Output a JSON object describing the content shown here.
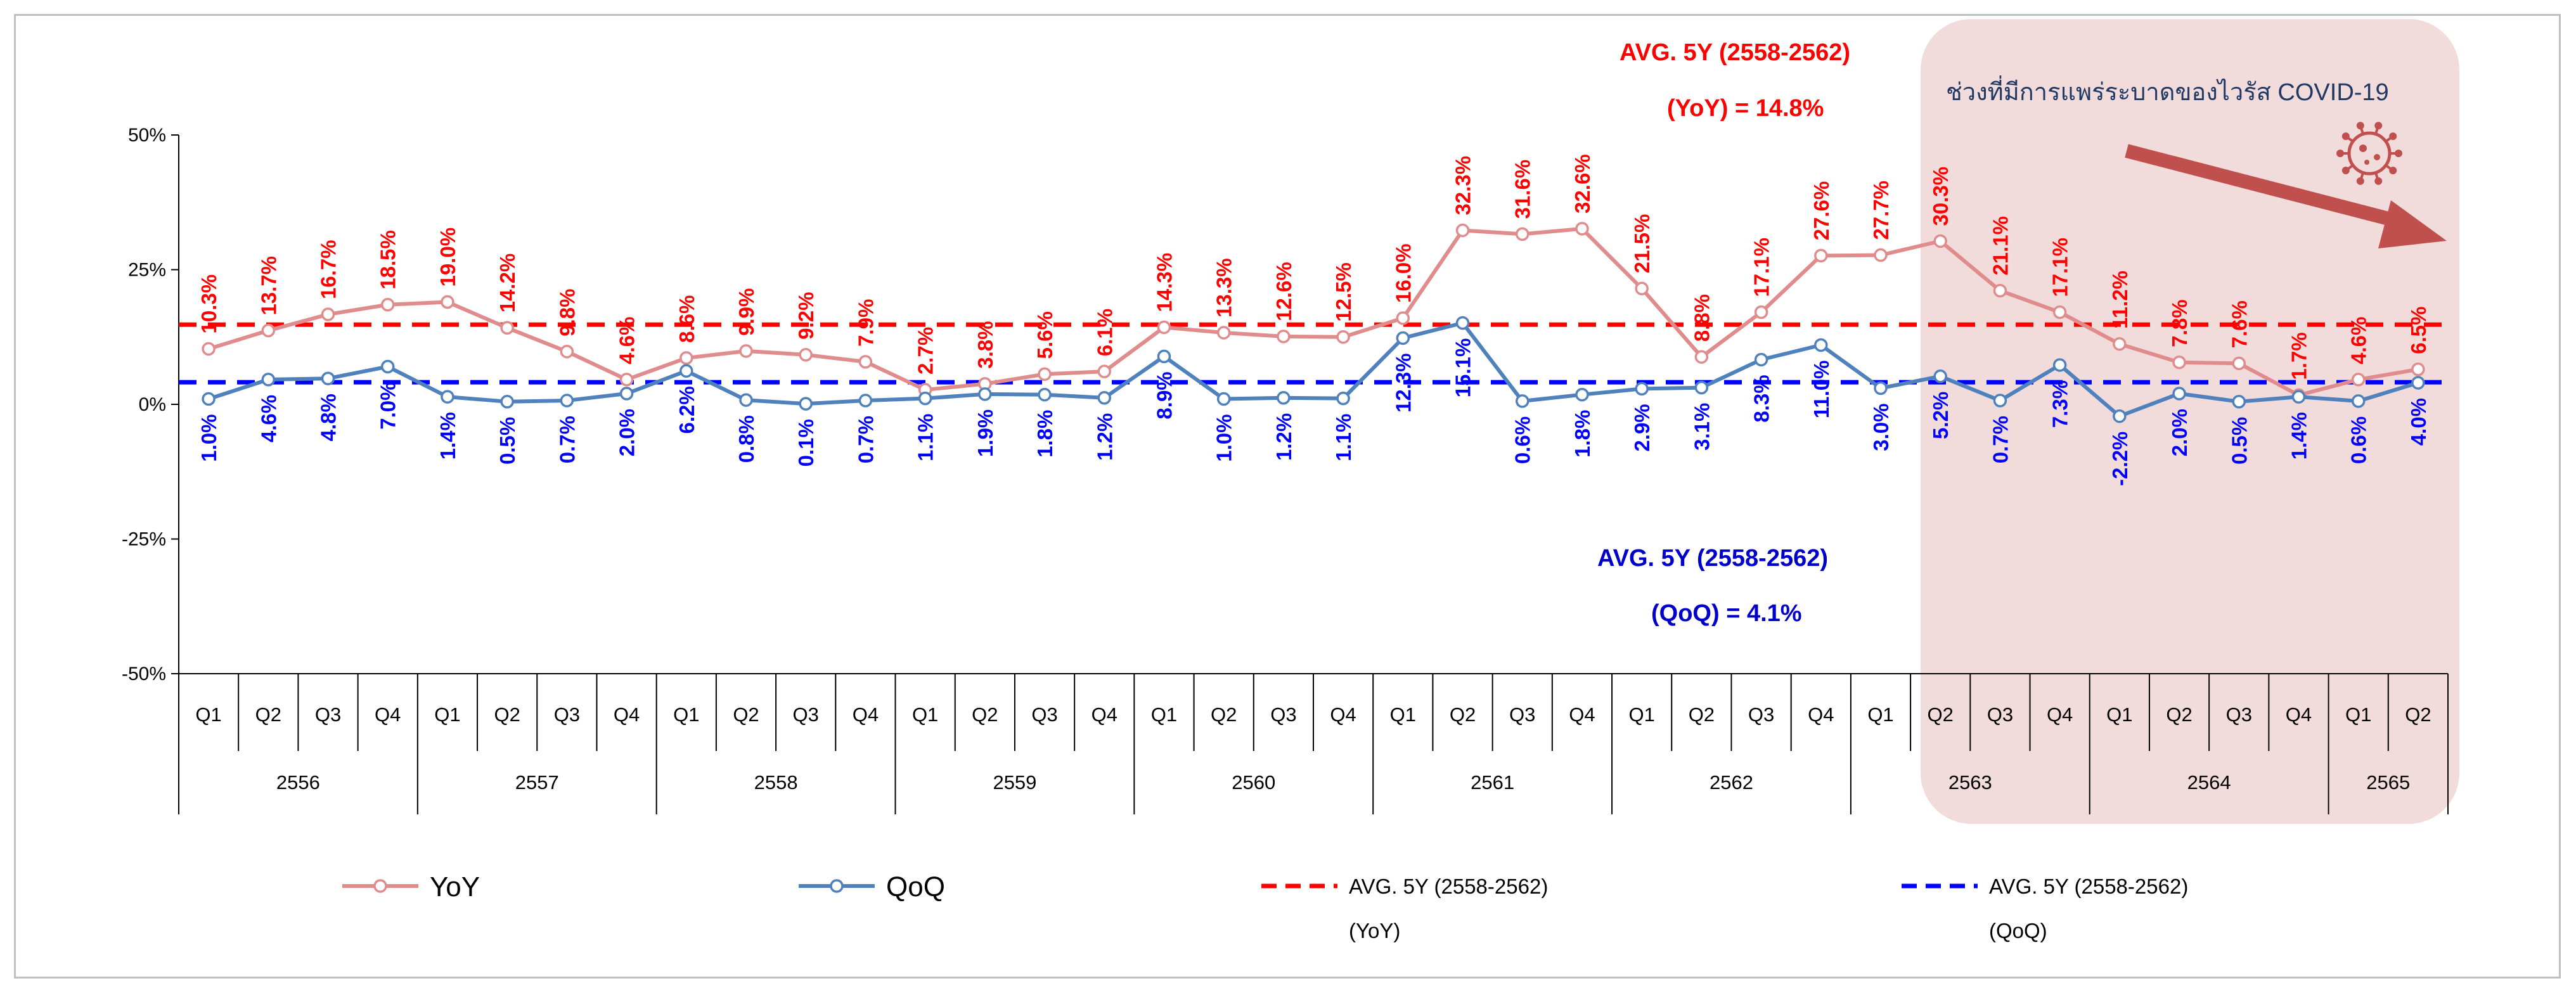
{
  "chart_data": {
    "type": "line",
    "y_ticks": [
      "50%",
      "25%",
      "0%",
      "-25%",
      "-50%"
    ],
    "y_tick_values": [
      50,
      25,
      0,
      -25,
      -50
    ],
    "ylim": [
      -50,
      50
    ],
    "categories": [
      "Q1",
      "Q2",
      "Q3",
      "Q4",
      "Q1",
      "Q2",
      "Q3",
      "Q4",
      "Q1",
      "Q2",
      "Q3",
      "Q4",
      "Q1",
      "Q2",
      "Q3",
      "Q4",
      "Q1",
      "Q2",
      "Q3",
      "Q4",
      "Q1",
      "Q2",
      "Q3",
      "Q4",
      "Q1",
      "Q2",
      "Q3",
      "Q4",
      "Q1",
      "Q2",
      "Q3",
      "Q4",
      "Q1",
      "Q2",
      "Q3",
      "Q4",
      "Q1",
      "Q2"
    ],
    "years": [
      {
        "label": "2556",
        "quarters": 4
      },
      {
        "label": "2557",
        "quarters": 4
      },
      {
        "label": "2558",
        "quarters": 4
      },
      {
        "label": "2559",
        "quarters": 4
      },
      {
        "label": "2560",
        "quarters": 4
      },
      {
        "label": "2561",
        "quarters": 4
      },
      {
        "label": "2562",
        "quarters": 4
      },
      {
        "label": "2563",
        "quarters": 4
      },
      {
        "label": "2564",
        "quarters": 4
      },
      {
        "label": "2565",
        "quarters": 2
      }
    ],
    "series": [
      {
        "name": "YoY",
        "color": "#e08c8c",
        "values": [
          10.3,
          13.7,
          16.7,
          18.5,
          19.0,
          14.2,
          9.8,
          4.6,
          8.6,
          9.9,
          9.2,
          7.9,
          2.7,
          3.8,
          5.6,
          6.1,
          14.3,
          13.3,
          12.6,
          12.5,
          16.0,
          32.3,
          31.6,
          32.6,
          21.5,
          8.8,
          17.1,
          27.6,
          27.7,
          30.3,
          21.1,
          17.1,
          11.2,
          7.8,
          7.6,
          1.7,
          4.6,
          6.5
        ],
        "labels": [
          "10.3%",
          "13.7%",
          "16.7%",
          "18.5%",
          "19.0%",
          "14.2%",
          "9.8%",
          "4.6%",
          "8.6%",
          "9.9%",
          "9.2%",
          "7.9%",
          "2.7%",
          "3.8%",
          "5.6%",
          "6.1%",
          "14.3%",
          "13.3%",
          "12.6%",
          "12.5%",
          "16.0%",
          "32.3%",
          "31.6%",
          "32.6%",
          "21.5%",
          "8.8%",
          "17.1%",
          "27.6%",
          "27.7%",
          "30.3%",
          "21.1%",
          "17.1%",
          "11.2%",
          "7.8%",
          "7.6%",
          "1.7%",
          "4.6%",
          "6.5%"
        ]
      },
      {
        "name": "QoQ",
        "color": "#4f81bd",
        "values": [
          1.0,
          4.6,
          4.8,
          7.0,
          1.4,
          0.5,
          0.7,
          2.0,
          6.2,
          0.8,
          0.1,
          0.7,
          1.1,
          1.9,
          1.8,
          1.2,
          8.9,
          1.0,
          1.2,
          1.1,
          12.3,
          15.1,
          0.6,
          1.8,
          2.9,
          3.1,
          8.3,
          11.0,
          3.0,
          5.2,
          0.7,
          7.3,
          -2.2,
          2.0,
          0.5,
          1.4,
          0.6,
          4.0
        ],
        "labels": [
          "1.0%",
          "4.6%",
          "4.8%",
          "7.0%",
          "1.4%",
          "0.5%",
          "0.7%",
          "2.0%",
          "6.2%",
          "0.8%",
          "0.1%",
          "0.7%",
          "1.1%",
          "1.9%",
          "1.8%",
          "1.2%",
          "8.9%",
          "1.0%",
          "1.2%",
          "1.1%",
          "12.3%",
          "15.1%",
          "0.6%",
          "1.8%",
          "2.9%",
          "3.1%",
          "8.3%",
          "11.0%",
          "3.0%",
          "5.2%",
          "0.7%",
          "7.3%",
          "-2.2%",
          "2.0%",
          "0.5%",
          "1.4%",
          "0.6%",
          "4.0%"
        ]
      }
    ],
    "reference_lines": [
      {
        "name": "AVG. 5Y (2558-2562) (YoY)",
        "value": 14.8,
        "color": "#ff0000",
        "style": "dashed"
      },
      {
        "name": "AVG. 5Y (2558-2562) (QoQ)",
        "value": 4.1,
        "color": "#0000ff",
        "style": "dashed"
      }
    ],
    "annotations": {
      "avg_yoy_line1": "AVG. 5Y (2558-2562)",
      "avg_yoy_line2": "(YoY) = 14.8%",
      "avg_qoq_line1": "AVG. 5Y (2558-2562)",
      "avg_qoq_line2": "(QoQ) = 4.1%",
      "covid_title": "ช่วงที่มีการแพร่ระบาดของไวรัส COVID-19",
      "covid_start_index": 29,
      "covid_box_color": "#f2dcdb",
      "arrow_color": "#c0504d"
    },
    "legend": {
      "position": "bottom",
      "items": [
        {
          "label": "YoY",
          "sub": ""
        },
        {
          "label": "QoQ",
          "sub": ""
        },
        {
          "label": "AVG. 5Y (2558-2562)",
          "sub": "(YoY)"
        },
        {
          "label": "AVG. 5Y (2558-2562)",
          "sub": "(QoQ)"
        }
      ]
    }
  }
}
